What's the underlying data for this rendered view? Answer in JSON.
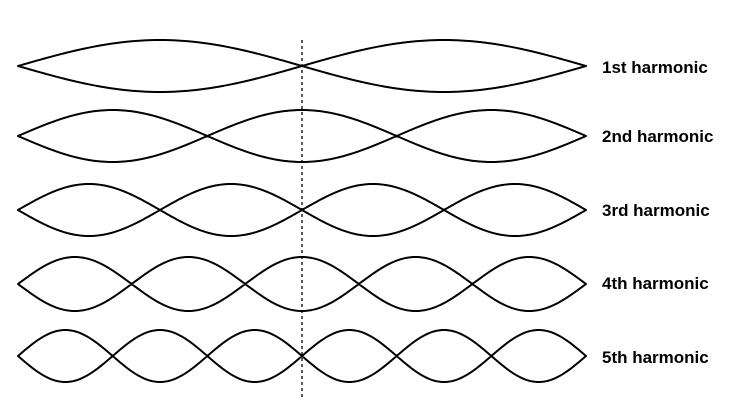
{
  "harmonics": [
    {
      "label": "1st harmonic",
      "loops": 2
    },
    {
      "label": "2nd harmonic",
      "loops": 3
    },
    {
      "label": "3rd harmonic",
      "loops": 4
    },
    {
      "label": "4th harmonic",
      "loops": 5
    },
    {
      "label": "5th harmonic",
      "loops": 6
    }
  ],
  "colors": {
    "stroke": "#000000",
    "background": "#ffffff"
  }
}
